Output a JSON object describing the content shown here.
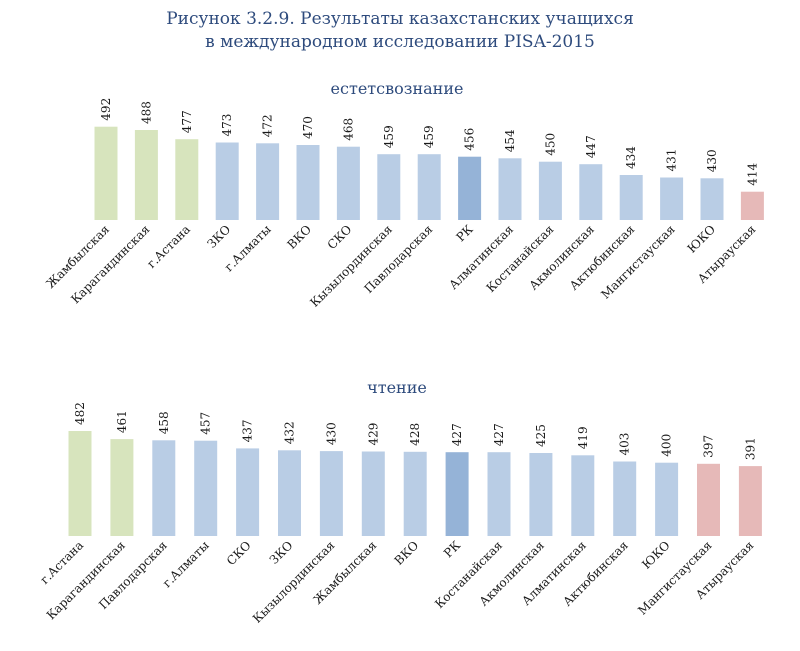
{
  "figure": {
    "title_line1": "Рисунок 3.2.9. Результаты казахстанских учащихся",
    "title_line2": "в международном исследовании PISA-2015"
  },
  "colors": {
    "high": "#d7e4bd",
    "mid": "#b9cde5",
    "national": "#95b3d7",
    "low": "#e6b9b8",
    "panel_title": "#2e4b7d"
  },
  "chart_data": [
    {
      "type": "bar",
      "title": "естетсвознание",
      "xlabel": "",
      "ylabel": "",
      "categories": [
        "Жамбылская",
        "Карагандинская",
        "г.Астана",
        "ЗКО",
        "г.Алматы",
        "ВКО",
        "СКО",
        "Кызылординская",
        "Павлодарская",
        "РК",
        "Алматинская",
        "Костанайская",
        "Акмолинская",
        "Актюбинская",
        "Мангистауская",
        "ЮКО",
        "Атырауская"
      ],
      "values": [
        492,
        488,
        477,
        473,
        472,
        470,
        468,
        459,
        459,
        456,
        454,
        450,
        447,
        434,
        431,
        430,
        414
      ],
      "bar_groups": [
        "high",
        "high",
        "high",
        "mid",
        "mid",
        "mid",
        "mid",
        "mid",
        "mid",
        "national",
        "mid",
        "mid",
        "mid",
        "mid",
        "mid",
        "mid",
        "low"
      ],
      "ylim": [
        380,
        500
      ],
      "grid": false,
      "legend": "none"
    },
    {
      "type": "bar",
      "title": "чтение",
      "xlabel": "",
      "ylabel": "",
      "categories": [
        "г.Астана",
        "Карагандинская",
        "Павлодарская",
        "г.Алматы",
        "СКО",
        "ЗКО",
        "Кызылординская",
        "Жамбылская",
        "ВКО",
        "РК",
        "Костанайская",
        "Акмолинская",
        "Алматинская",
        "Актюбинская",
        "ЮКО",
        "Мангистауская",
        "Атырауская"
      ],
      "values": [
        482,
        461,
        458,
        457,
        437,
        432,
        430,
        429,
        428,
        427,
        427,
        425,
        419,
        403,
        400,
        397,
        391
      ],
      "bar_groups": [
        "high",
        "high",
        "mid",
        "mid",
        "mid",
        "mid",
        "mid",
        "mid",
        "mid",
        "national",
        "mid",
        "mid",
        "mid",
        "mid",
        "mid",
        "low",
        "low"
      ],
      "ylim": [
        210,
        482
      ],
      "grid": false,
      "legend": "none"
    }
  ]
}
